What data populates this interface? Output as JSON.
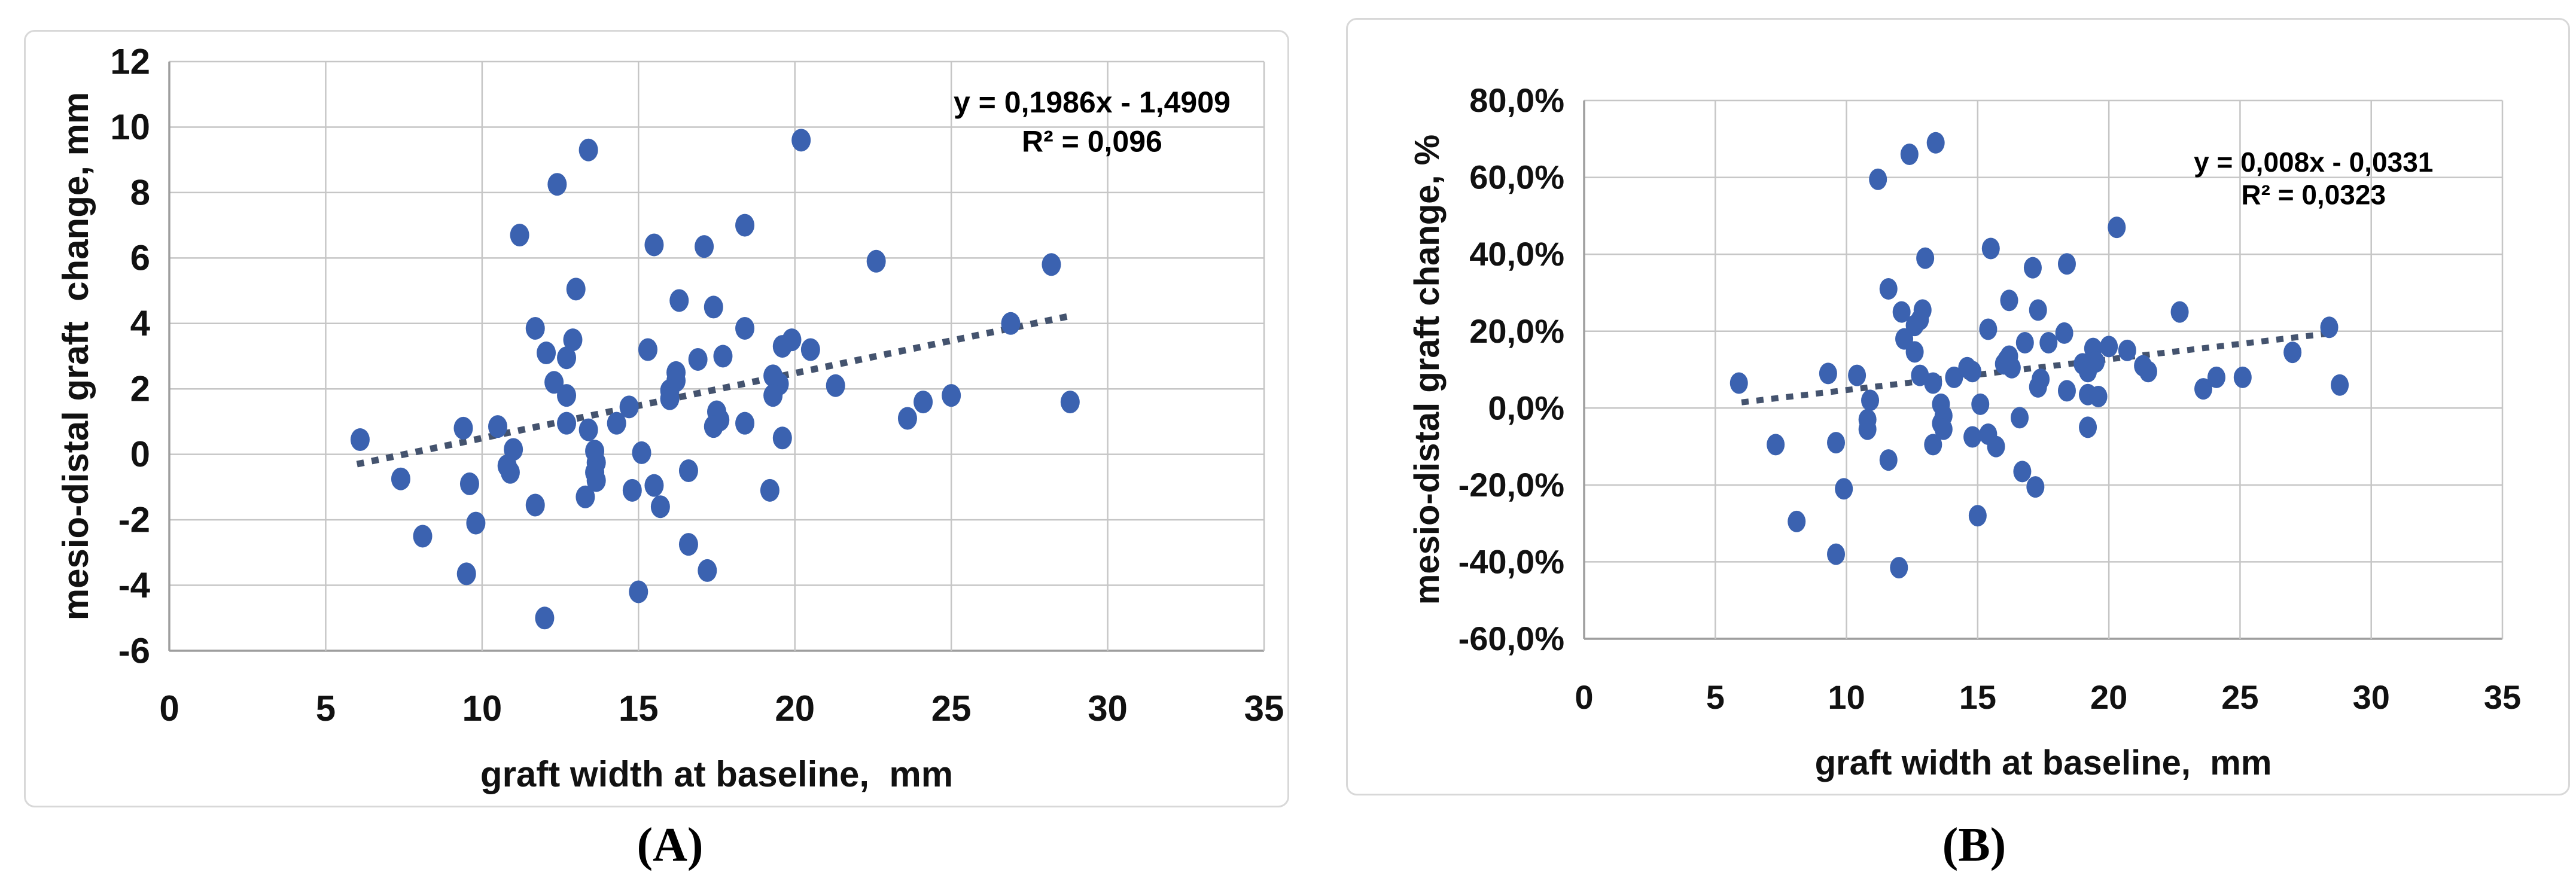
{
  "colors": {
    "marker": "#3b62b0",
    "trendline": "#44536e",
    "grid": "#c6c6c6",
    "axis": "#9e9e9e",
    "panel_border": "#d8d8d8",
    "text": "#111111"
  },
  "chart_data": [
    {
      "type": "scatter",
      "panel_label": "(A)",
      "xlabel": "graft width at baseline,  mm",
      "ylabel": "mesio-distal graft  change, mm",
      "xlim": [
        0,
        35
      ],
      "ylim": [
        -6,
        12
      ],
      "xticks": [
        0,
        5,
        10,
        15,
        20,
        25,
        30,
        35
      ],
      "xtick_labels": [
        "0",
        "5",
        "10",
        "15",
        "20",
        "25",
        "30",
        "35"
      ],
      "yticks": [
        12,
        10,
        8,
        6,
        4,
        2,
        0,
        -2,
        -4,
        -6
      ],
      "ytick_labels": [
        "12",
        "10",
        "8",
        "6",
        "4",
        "2",
        "0",
        "-2",
        "-4",
        "-6"
      ],
      "grid": true,
      "trendline": {
        "equation": "y = 0,1986x - 1,4909",
        "r_squared": "R² = 0,096",
        "slope": 0.1986,
        "intercept": -1.4909,
        "x_start": 6.0,
        "x_end": 28.7,
        "style": "dotted"
      },
      "annotation_anchor": {
        "x": 29.5,
        "line1_y": 10.45,
        "line2_y": 9.25
      },
      "points": [
        [
          13.4,
          9.3
        ],
        [
          20.2,
          9.6
        ],
        [
          12.4,
          8.25
        ],
        [
          11.2,
          6.7
        ],
        [
          15.5,
          6.4
        ],
        [
          17.1,
          6.35
        ],
        [
          18.4,
          7.0
        ],
        [
          22.6,
          5.9
        ],
        [
          28.2,
          5.8
        ],
        [
          13.0,
          5.05
        ],
        [
          16.3,
          4.7
        ],
        [
          17.4,
          4.5
        ],
        [
          26.9,
          4.0
        ],
        [
          11.7,
          3.85
        ],
        [
          12.9,
          3.5
        ],
        [
          18.4,
          3.85
        ],
        [
          12.05,
          3.1
        ],
        [
          12.7,
          2.95
        ],
        [
          15.3,
          3.2
        ],
        [
          19.6,
          3.3
        ],
        [
          19.9,
          3.5
        ],
        [
          20.5,
          3.2
        ],
        [
          16.9,
          2.9
        ],
        [
          17.7,
          3.0
        ],
        [
          6.1,
          0.45
        ],
        [
          7.4,
          -0.75
        ],
        [
          8.1,
          -2.5
        ],
        [
          9.4,
          0.8
        ],
        [
          9.6,
          -0.9
        ],
        [
          9.8,
          -2.1
        ],
        [
          9.5,
          -3.65
        ],
        [
          10.5,
          0.85
        ],
        [
          11.0,
          0.15
        ],
        [
          10.8,
          -0.35
        ],
        [
          10.9,
          -0.55
        ],
        [
          11.7,
          -1.55
        ],
        [
          12.0,
          -5.0
        ],
        [
          13.3,
          -1.3
        ],
        [
          12.3,
          2.2
        ],
        [
          12.7,
          1.8
        ],
        [
          16.2,
          2.5
        ],
        [
          16.2,
          2.25
        ],
        [
          19.3,
          2.4
        ],
        [
          19.5,
          2.15
        ],
        [
          21.3,
          2.1
        ],
        [
          16.0,
          1.95
        ],
        [
          16.0,
          1.7
        ],
        [
          19.3,
          1.8
        ],
        [
          25.0,
          1.8
        ],
        [
          24.1,
          1.6
        ],
        [
          28.8,
          1.6
        ],
        [
          14.7,
          1.45
        ],
        [
          17.5,
          1.3
        ],
        [
          17.6,
          1.05
        ],
        [
          17.4,
          0.85
        ],
        [
          23.6,
          1.1
        ],
        [
          12.7,
          0.95
        ],
        [
          13.4,
          0.75
        ],
        [
          14.3,
          0.95
        ],
        [
          18.4,
          0.95
        ],
        [
          19.6,
          0.5
        ],
        [
          13.6,
          0.1
        ],
        [
          13.65,
          -0.25
        ],
        [
          13.6,
          -0.55
        ],
        [
          13.65,
          -0.8
        ],
        [
          15.1,
          0.05
        ],
        [
          16.6,
          -0.5
        ],
        [
          14.8,
          -1.1
        ],
        [
          15.5,
          -0.95
        ],
        [
          15.7,
          -1.6
        ],
        [
          19.2,
          -1.1
        ],
        [
          16.6,
          -2.75
        ],
        [
          15.0,
          -4.2
        ],
        [
          17.2,
          -3.55
        ]
      ]
    },
    {
      "type": "scatter",
      "panel_label": "(B)",
      "xlabel": "graft width at baseline,  mm",
      "ylabel": "mesio-distal graft change, %",
      "xlim": [
        0,
        35
      ],
      "ylim": [
        -60,
        80
      ],
      "xticks": [
        0,
        5,
        10,
        15,
        20,
        25,
        30,
        35
      ],
      "xtick_labels": [
        "0",
        "5",
        "10",
        "15",
        "20",
        "25",
        "30",
        "35"
      ],
      "yticks": [
        80,
        60,
        40,
        20,
        0,
        -20,
        -40,
        -60
      ],
      "ytick_labels": [
        "80,0%",
        "60,0%",
        "40,0%",
        "20,0%",
        "0,0%",
        "-20,0%",
        "-40,0%",
        "-60,0%"
      ],
      "grid": true,
      "trendline": {
        "equation": "y = 0,008x - 0,0331",
        "r_squared": "R² = 0,0323",
        "slope": 0.8,
        "intercept": -3.31,
        "x_start": 6.0,
        "x_end": 28.6,
        "style": "dotted"
      },
      "annotation_anchor": {
        "x": 27.8,
        "line1_y": 61.5,
        "line2_y": 53.0
      },
      "points": [
        [
          13.4,
          69
        ],
        [
          12.4,
          66
        ],
        [
          11.2,
          59.5
        ],
        [
          20.3,
          47
        ],
        [
          15.5,
          41.5
        ],
        [
          13.0,
          39
        ],
        [
          17.1,
          36.5
        ],
        [
          18.4,
          37.5
        ],
        [
          11.6,
          31
        ],
        [
          16.2,
          28
        ],
        [
          17.3,
          25.5
        ],
        [
          22.7,
          25
        ],
        [
          12.1,
          25
        ],
        [
          12.9,
          25.5
        ],
        [
          12.8,
          23
        ],
        [
          12.6,
          21.5
        ],
        [
          15.4,
          20.5
        ],
        [
          18.3,
          19.5
        ],
        [
          28.4,
          21
        ],
        [
          12.2,
          18
        ],
        [
          12.6,
          14.6
        ],
        [
          16.8,
          17
        ],
        [
          17.7,
          17
        ],
        [
          19.4,
          15.5
        ],
        [
          20.0,
          16
        ],
        [
          20.7,
          15
        ],
        [
          27.0,
          14.5
        ],
        [
          16.2,
          13.5
        ],
        [
          16.0,
          11.5
        ],
        [
          19.5,
          12
        ],
        [
          19.0,
          11.5
        ],
        [
          5.9,
          6.5
        ],
        [
          9.3,
          9
        ],
        [
          10.4,
          8.5
        ],
        [
          10.9,
          2
        ],
        [
          12.8,
          8.5
        ],
        [
          13.3,
          6.5
        ],
        [
          14.1,
          8
        ],
        [
          13.6,
          1
        ],
        [
          13.7,
          -2
        ],
        [
          13.6,
          -4
        ],
        [
          13.7,
          -5.5
        ],
        [
          14.6,
          10.5
        ],
        [
          14.8,
          9.5
        ],
        [
          15.1,
          1
        ],
        [
          15.4,
          -6.8
        ],
        [
          14.8,
          -7.5
        ],
        [
          13.3,
          -9.5
        ],
        [
          15.7,
          -10
        ],
        [
          7.3,
          -9.5
        ],
        [
          9.6,
          -9
        ],
        [
          10.8,
          -3
        ],
        [
          10.8,
          -5.5
        ],
        [
          11.6,
          -13.5
        ],
        [
          16.1,
          12.5
        ],
        [
          16.3,
          10.5
        ],
        [
          16.6,
          -2.5
        ],
        [
          17.4,
          7.5
        ],
        [
          17.3,
          5.5
        ],
        [
          18.4,
          4.5
        ],
        [
          19.2,
          9.5
        ],
        [
          19.2,
          3.5
        ],
        [
          19.6,
          3
        ],
        [
          19.2,
          -5
        ],
        [
          21.3,
          11
        ],
        [
          21.5,
          9.5
        ],
        [
          16.7,
          -16.5
        ],
        [
          17.2,
          -20.5
        ],
        [
          9.9,
          -21
        ],
        [
          15.0,
          -28
        ],
        [
          8.1,
          -29.5
        ],
        [
          9.6,
          -38
        ],
        [
          12.0,
          -41.5
        ],
        [
          23.6,
          5
        ],
        [
          24.1,
          8
        ],
        [
          25.1,
          8
        ],
        [
          28.8,
          6
        ]
      ]
    }
  ]
}
